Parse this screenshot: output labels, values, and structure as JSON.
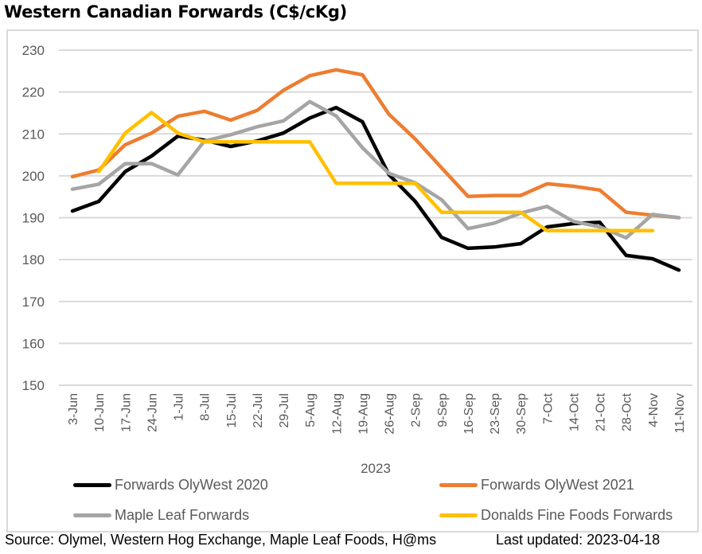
{
  "title": "Western Canadian Forwards (C$/cKg)",
  "footer": {
    "source": "Source: Olymel, Western Hog Exchange, Maple Leaf Foods, H@ms",
    "updated": "Last updated:  2023-04-18"
  },
  "chart_data": {
    "type": "line",
    "title": "Western Canadian Forwards (C$/cKg)",
    "xlabel": "2023",
    "ylabel": "",
    "ylim": [
      150,
      230
    ],
    "yticks": [
      150,
      160,
      170,
      180,
      190,
      200,
      210,
      220,
      230
    ],
    "grid": true,
    "legend_position": "bottom",
    "categories": [
      "3-Jun",
      "10-Jun",
      "17-Jun",
      "24-Jun",
      "1-Jul",
      "8-Jul",
      "15-Jul",
      "22-Jul",
      "29-Jul",
      "5-Aug",
      "12-Aug",
      "19-Aug",
      "26-Aug",
      "2-Sep",
      "9-Sep",
      "16-Sep",
      "23-Sep",
      "30-Sep",
      "7-Oct",
      "14-Oct",
      "21-Oct",
      "28-Oct",
      "4-Nov",
      "11-Nov"
    ],
    "series": [
      {
        "name": "Forwards OlyWest 2020",
        "color": "#000000",
        "values": [
          191.6,
          193.9,
          201.0,
          204.7,
          209.5,
          208.5,
          207.0,
          208.3,
          210.2,
          213.8,
          216.3,
          212.9,
          200.3,
          193.9,
          185.3,
          182.7,
          183.0,
          183.8,
          187.8,
          188.6,
          188.9,
          181.0,
          180.2,
          177.5
        ]
      },
      {
        "name": "Forwards OlyWest 2021",
        "color": "#ed7d31",
        "values": [
          199.8,
          201.4,
          207.4,
          210.2,
          214.2,
          215.4,
          213.3,
          215.6,
          220.4,
          223.9,
          225.3,
          224.1,
          214.7,
          208.8,
          201.9,
          195.1,
          195.3,
          195.3,
          198.1,
          197.5,
          196.6,
          191.3,
          190.6,
          190.0
        ]
      },
      {
        "name": "Maple Leaf Forwards",
        "color": "#a5a5a5",
        "values": [
          196.8,
          198.0,
          202.9,
          202.9,
          200.2,
          208.3,
          209.8,
          211.7,
          213.1,
          217.7,
          214.3,
          206.7,
          200.6,
          198.3,
          194.3,
          187.4,
          188.7,
          191.1,
          192.7,
          189.1,
          187.8,
          185.2,
          190.8,
          190.0
        ]
      },
      {
        "name": "Donalds Fine Foods Forwards",
        "color": "#ffc000",
        "values": [
          null,
          201.0,
          210.2,
          215.1,
          210.2,
          208.1,
          208.1,
          208.1,
          208.1,
          208.1,
          198.2,
          198.2,
          198.2,
          198.2,
          191.3,
          191.3,
          191.3,
          191.3,
          186.9,
          186.9,
          186.9,
          186.9,
          186.9,
          null
        ]
      }
    ]
  }
}
